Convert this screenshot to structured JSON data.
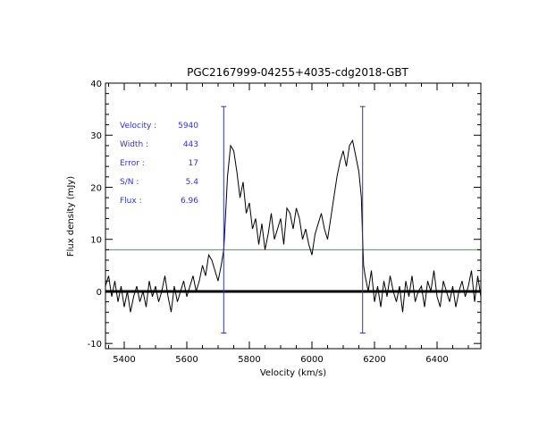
{
  "chart_data": {
    "type": "line",
    "title": "PGC2167999-04255+4035-cdg2018-GBT",
    "xlabel": "Velocity (km/s)",
    "ylabel": "Flux density (mJy)",
    "xlim": [
      5340,
      6540
    ],
    "ylim": [
      -11,
      40
    ],
    "x_ticks": [
      5400,
      5600,
      5800,
      6000,
      6200,
      6400
    ],
    "y_ticks": [
      -10,
      0,
      10,
      20,
      30,
      40
    ],
    "x_tick_labels": [
      "5400",
      "5600",
      "5800",
      "6000",
      "6200",
      "6400"
    ],
    "y_tick_labels": [
      "-10",
      "0",
      "10",
      "20",
      "30",
      "40"
    ],
    "zero_line": 0,
    "threshold_line": 8,
    "markers": [
      5718,
      6162
    ],
    "marker_range": [
      -8,
      35.5
    ],
    "colors": {
      "spectrum": "#000000",
      "threshold": "#00cc00",
      "marker": "#3333bb",
      "annotation": "#3333cc"
    },
    "annotations": [
      {
        "label": "Velocity :",
        "value": "5940"
      },
      {
        "label": "Width :",
        "value": "443"
      },
      {
        "label": "Error :",
        "value": "17"
      },
      {
        "label": "S/N :",
        "value": "5.4"
      },
      {
        "label": "Flux :",
        "value": "6.96"
      }
    ],
    "series": [
      {
        "x": [
          5340,
          5350,
          5360,
          5370,
          5380,
          5390,
          5400,
          5410,
          5420,
          5430,
          5440,
          5450,
          5460,
          5470,
          5480,
          5490,
          5500,
          5510,
          5520,
          5530,
          5540,
          5550,
          5560,
          5570,
          5580,
          5590,
          5600,
          5610,
          5620,
          5630,
          5640,
          5650,
          5660,
          5670,
          5680,
          5690,
          5700,
          5710,
          5718,
          5720,
          5730,
          5740,
          5750,
          5760,
          5770,
          5780,
          5790,
          5800,
          5810,
          5820,
          5830,
          5840,
          5850,
          5860,
          5870,
          5880,
          5890,
          5900,
          5910,
          5920,
          5930,
          5940,
          5950,
          5960,
          5970,
          5980,
          5990,
          6000,
          6010,
          6020,
          6030,
          6040,
          6050,
          6060,
          6070,
          6080,
          6090,
          6100,
          6110,
          6120,
          6130,
          6140,
          6150,
          6158,
          6162,
          6165,
          6170,
          6180,
          6190,
          6200,
          6210,
          6220,
          6230,
          6240,
          6250,
          6260,
          6270,
          6280,
          6290,
          6300,
          6310,
          6320,
          6330,
          6340,
          6350,
          6360,
          6370,
          6380,
          6390,
          6400,
          6410,
          6420,
          6430,
          6440,
          6450,
          6460,
          6470,
          6480,
          6490,
          6500,
          6510,
          6520,
          6530,
          6540
        ],
        "y": [
          1,
          3,
          -1,
          2,
          -2,
          1,
          -3,
          0,
          -4,
          -1,
          1,
          -2,
          0,
          -3,
          2,
          -1,
          1,
          -2,
          0,
          3,
          -1,
          -4,
          1,
          -2,
          0,
          2,
          -1,
          1,
          3,
          0,
          2,
          5,
          3,
          7,
          6,
          4,
          2,
          5,
          8,
          10,
          22,
          28,
          27,
          23,
          18,
          21,
          15,
          17,
          12,
          14,
          9,
          13,
          8,
          11,
          15,
          10,
          12,
          14,
          9,
          16,
          15,
          12,
          16,
          14,
          10,
          12,
          9,
          7,
          11,
          13,
          15,
          12,
          10,
          14,
          18,
          22,
          25,
          27,
          24,
          28,
          29,
          26,
          23,
          18,
          10,
          5,
          3,
          0,
          4,
          -2,
          1,
          -3,
          2,
          -1,
          3,
          0,
          -2,
          1,
          -4,
          2,
          -1,
          3,
          -2,
          0,
          1,
          -3,
          2,
          0,
          4,
          -1,
          -3,
          2,
          0,
          -2,
          1,
          -3,
          0,
          2,
          -1,
          1,
          4,
          -2,
          3,
          -1
        ]
      }
    ]
  }
}
